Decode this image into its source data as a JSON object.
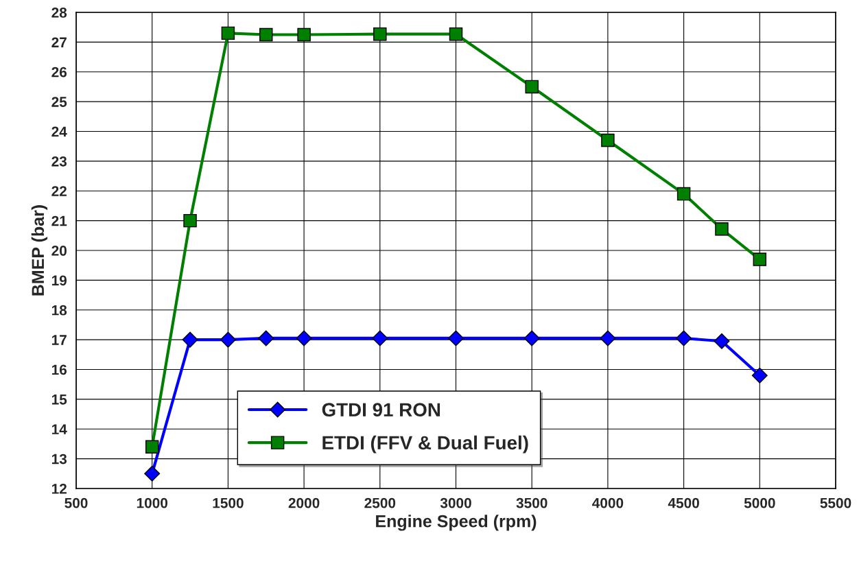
{
  "chart_data": {
    "type": "line",
    "xlabel": "Engine Speed (rpm)",
    "ylabel": "BMEP (bar)",
    "x": [
      1000,
      1250,
      1500,
      1750,
      2000,
      2500,
      3000,
      3500,
      4000,
      4500,
      4750,
      5000
    ],
    "series": [
      {
        "name": "GTDI 91 RON",
        "color": "#0000ff",
        "marker": "diamond",
        "values": [
          12.5,
          17.0,
          17.0,
          17.05,
          17.05,
          17.05,
          17.05,
          17.05,
          17.05,
          17.05,
          16.95,
          15.8
        ]
      },
      {
        "name": "ETDI (FFV & Dual Fuel)",
        "color": "#008000",
        "marker": "square",
        "values": [
          13.4,
          21.0,
          27.3,
          27.25,
          27.25,
          27.27,
          27.27,
          25.5,
          23.7,
          21.9,
          20.72,
          19.7
        ]
      }
    ],
    "xlim": [
      500,
      5500
    ],
    "xticks": [
      500,
      1000,
      1500,
      2000,
      2500,
      3000,
      3500,
      4000,
      4500,
      5000,
      5500
    ],
    "ylim": [
      12,
      28
    ],
    "yticks": [
      12,
      13,
      14,
      15,
      16,
      17,
      18,
      19,
      20,
      21,
      22,
      23,
      24,
      25,
      26,
      27,
      28
    ],
    "grid": true,
    "legend": "bottom",
    "line_style": "solid"
  }
}
